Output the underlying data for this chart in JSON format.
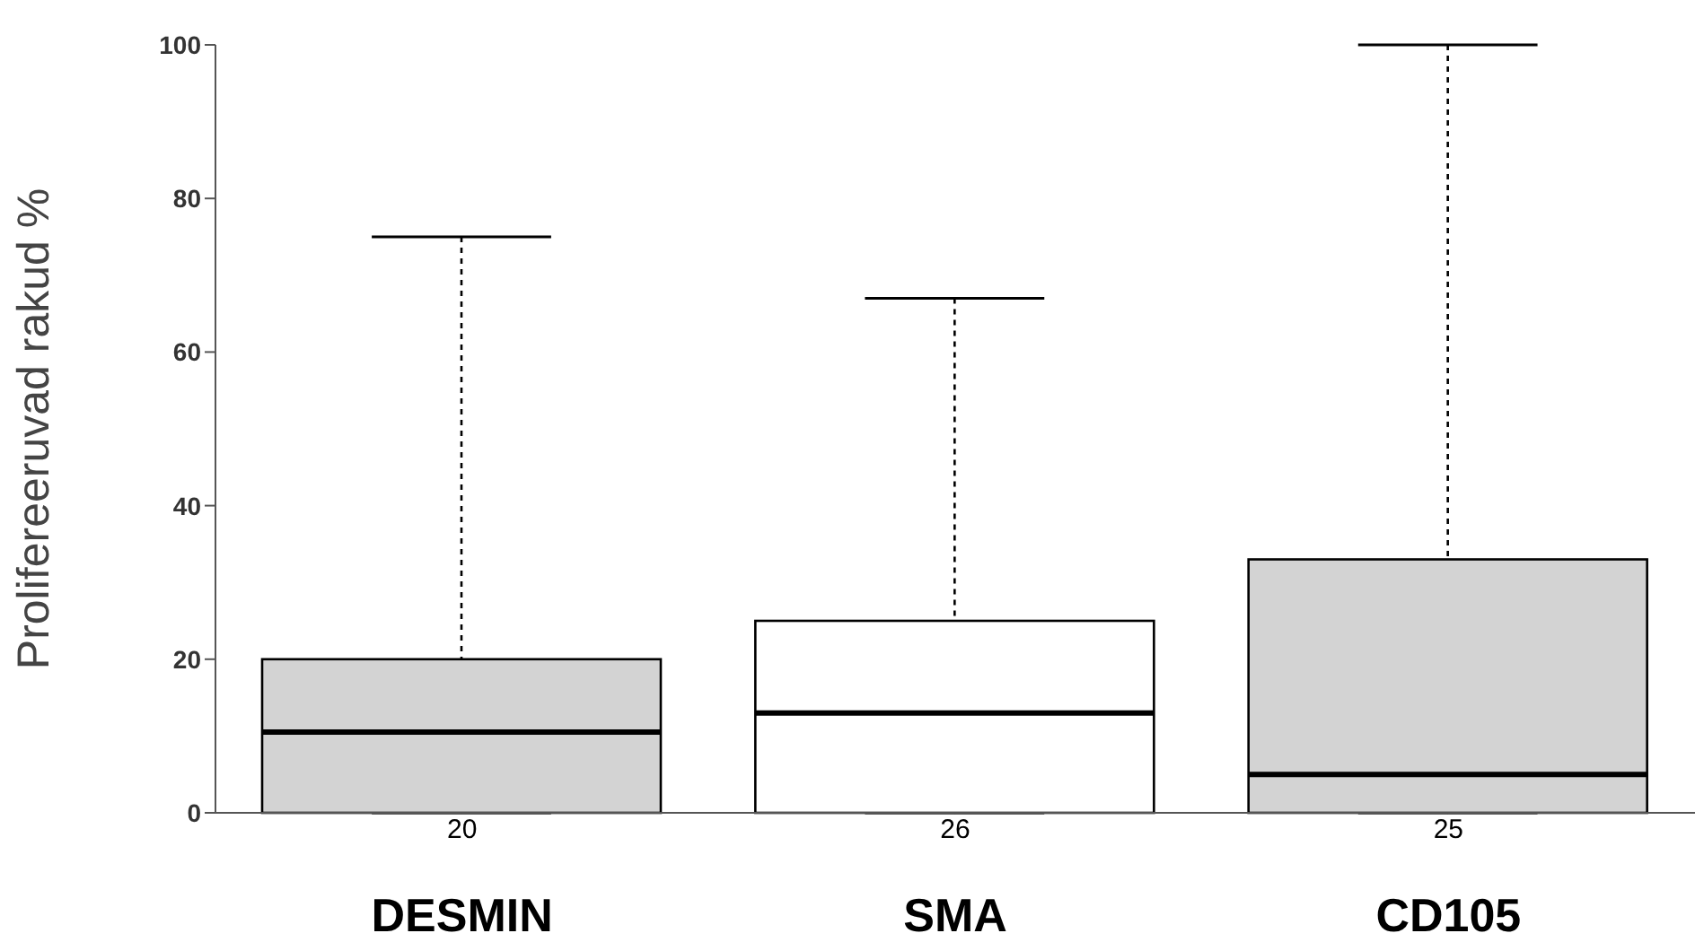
{
  "chart_data": {
    "type": "box",
    "ylabel": "Prolifereeruvad rakud  %",
    "categories": [
      "DESMIN",
      "SMA",
      "CD105"
    ],
    "boxes": [
      {
        "low": 0,
        "q1": 0,
        "median": 10.5,
        "q3": 20,
        "high": 75
      },
      {
        "low": 0,
        "q1": 0,
        "median": 13,
        "q3": 25,
        "high": 67
      },
      {
        "low": 0,
        "q1": 0,
        "median": 5,
        "q3": 33,
        "high": 100
      }
    ],
    "colors": [
      "#d3d3d3",
      "#ffffff",
      "#d3d3d3"
    ],
    "ylim": [
      0,
      100
    ],
    "yticks": [
      0,
      20,
      40,
      60,
      80,
      100
    ],
    "grid": false,
    "legend": false,
    "annotations": [
      "20",
      "26",
      "25"
    ]
  }
}
